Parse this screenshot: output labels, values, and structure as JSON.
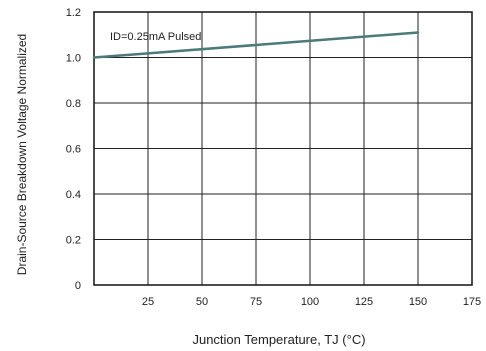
{
  "chart_data": {
    "type": "line",
    "title": "",
    "xlabel": "Junction Temperature, TJ (°C)",
    "ylabel": "Drain-Source Breakdown Voltage Normalized",
    "xlim": [
      0,
      175
    ],
    "ylim": [
      0,
      1.2
    ],
    "x_ticks": [
      25,
      50,
      75,
      100,
      125,
      150,
      175
    ],
    "y_ticks": [
      0,
      0.2,
      0.4,
      0.6,
      0.8,
      1.0,
      1.2
    ],
    "x_tick_labels": [
      "25",
      "50",
      "75",
      "100",
      "125",
      "150",
      "175"
    ],
    "y_tick_labels": [
      "0",
      "0.2",
      "0.4",
      "0.6",
      "0.8",
      "1.0",
      "1.2"
    ],
    "grid": true,
    "annotation": "ID=0.25mA Pulsed",
    "series": [
      {
        "x": [
          0,
          150
        ],
        "y": [
          1.0,
          1.11
        ],
        "color": "#4a7a7a"
      }
    ]
  }
}
